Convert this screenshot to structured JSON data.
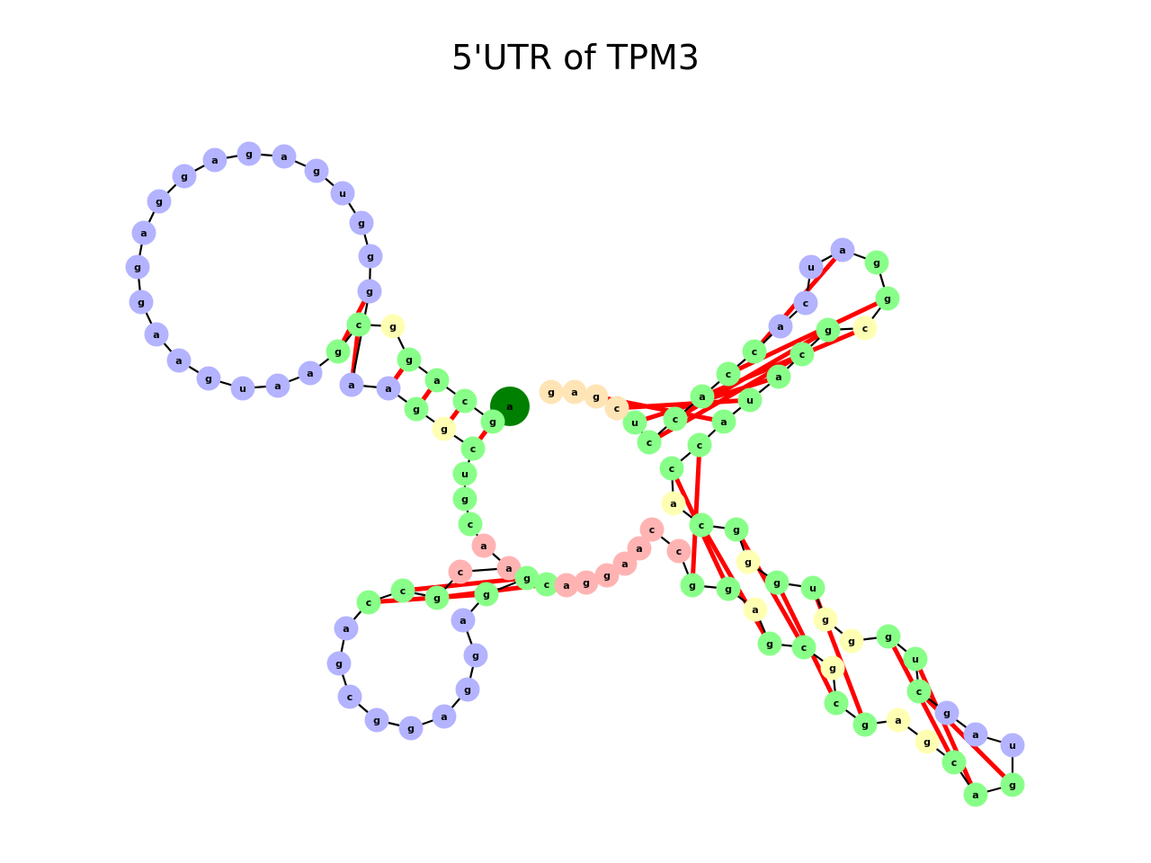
{
  "title": "5'UTR of TPM3",
  "colors": {
    "stem": "#88ff88",
    "hairpin_loop": "#b3b3ff",
    "interior_loop": "#ffffb3",
    "multiloop": "#ffb3b3",
    "unpaired_end": "#ffe4b5",
    "five_prime": "#008000",
    "three_prime": "#ff0000",
    "pair_line": "#ff0000",
    "backbone": "#000000"
  },
  "nucleotides": [
    {
      "base": "a",
      "type": "five_prime"
    },
    {
      "base": "g",
      "type": "stem"
    },
    {
      "base": "c",
      "type": "stem"
    },
    {
      "base": "a",
      "type": "stem"
    },
    {
      "base": "g",
      "type": "stem"
    },
    {
      "base": "g",
      "type": "interior_loop"
    },
    {
      "base": "c",
      "type": "stem"
    },
    {
      "base": "g",
      "type": "stem"
    },
    {
      "base": "a",
      "type": "hairpin_loop"
    },
    {
      "base": "a",
      "type": "hairpin_loop"
    },
    {
      "base": "u",
      "type": "hairpin_loop"
    },
    {
      "base": "g",
      "type": "hairpin_loop"
    },
    {
      "base": "a",
      "type": "hairpin_loop"
    },
    {
      "base": "a",
      "type": "hairpin_loop"
    },
    {
      "base": "g",
      "type": "hairpin_loop"
    },
    {
      "base": "g",
      "type": "hairpin_loop"
    },
    {
      "base": "a",
      "type": "hairpin_loop"
    },
    {
      "base": "g",
      "type": "hairpin_loop"
    },
    {
      "base": "g",
      "type": "hairpin_loop"
    },
    {
      "base": "a",
      "type": "hairpin_loop"
    },
    {
      "base": "g",
      "type": "hairpin_loop"
    },
    {
      "base": "a",
      "type": "hairpin_loop"
    },
    {
      "base": "g",
      "type": "hairpin_loop"
    },
    {
      "base": "u",
      "type": "hairpin_loop"
    },
    {
      "base": "g",
      "type": "hairpin_loop"
    },
    {
      "base": "g",
      "type": "hairpin_loop"
    },
    {
      "base": "g",
      "type": "hairpin_loop"
    },
    {
      "base": "a",
      "type": "hairpin_loop"
    },
    {
      "base": "a",
      "type": "hairpin_loop"
    },
    {
      "base": "g",
      "type": "stem"
    },
    {
      "base": "g",
      "type": "interior_loop"
    },
    {
      "base": "c",
      "type": "stem"
    },
    {
      "base": "u",
      "type": "stem"
    },
    {
      "base": "g",
      "type": "stem"
    },
    {
      "base": "c",
      "type": "stem"
    },
    {
      "base": "a",
      "type": "multiloop"
    },
    {
      "base": "a",
      "type": "multiloop"
    },
    {
      "base": "c",
      "type": "multiloop"
    },
    {
      "base": "g",
      "type": "stem"
    },
    {
      "base": "c",
      "type": "stem"
    },
    {
      "base": "c",
      "type": "stem"
    },
    {
      "base": "a",
      "type": "hairpin_loop"
    },
    {
      "base": "g",
      "type": "hairpin_loop"
    },
    {
      "base": "c",
      "type": "hairpin_loop"
    },
    {
      "base": "g",
      "type": "hairpin_loop"
    },
    {
      "base": "g",
      "type": "hairpin_loop"
    },
    {
      "base": "a",
      "type": "hairpin_loop"
    },
    {
      "base": "g",
      "type": "hairpin_loop"
    },
    {
      "base": "g",
      "type": "hairpin_loop"
    },
    {
      "base": "a",
      "type": "hairpin_loop"
    },
    {
      "base": "g",
      "type": "stem"
    },
    {
      "base": "g",
      "type": "stem"
    },
    {
      "base": "c",
      "type": "stem"
    },
    {
      "base": "a",
      "type": "multiloop"
    },
    {
      "base": "g",
      "type": "multiloop"
    },
    {
      "base": "g",
      "type": "multiloop"
    },
    {
      "base": "a",
      "type": "multiloop"
    },
    {
      "base": "a",
      "type": "multiloop"
    },
    {
      "base": "c",
      "type": "multiloop"
    },
    {
      "base": "c",
      "type": "multiloop"
    },
    {
      "base": "g",
      "type": "stem"
    },
    {
      "base": "g",
      "type": "stem"
    },
    {
      "base": "a",
      "type": "interior_loop"
    },
    {
      "base": "g",
      "type": "stem"
    },
    {
      "base": "c",
      "type": "stem"
    },
    {
      "base": "g",
      "type": "interior_loop"
    },
    {
      "base": "c",
      "type": "stem"
    },
    {
      "base": "g",
      "type": "stem"
    },
    {
      "base": "a",
      "type": "interior_loop"
    },
    {
      "base": "g",
      "type": "interior_loop"
    },
    {
      "base": "c",
      "type": "stem"
    },
    {
      "base": "a",
      "type": "stem"
    },
    {
      "base": "g",
      "type": "stem"
    },
    {
      "base": "u",
      "type": "hairpin_loop"
    },
    {
      "base": "a",
      "type": "hairpin_loop"
    },
    {
      "base": "g",
      "type": "hairpin_loop"
    },
    {
      "base": "c",
      "type": "stem"
    },
    {
      "base": "u",
      "type": "stem"
    },
    {
      "base": "g",
      "type": "stem"
    },
    {
      "base": "g",
      "type": "interior_loop"
    },
    {
      "base": "g",
      "type": "interior_loop"
    },
    {
      "base": "u",
      "type": "stem"
    },
    {
      "base": "g",
      "type": "stem"
    },
    {
      "base": "g",
      "type": "interior_loop"
    },
    {
      "base": "g",
      "type": "stem"
    },
    {
      "base": "c",
      "type": "stem"
    },
    {
      "base": "a",
      "type": "interior_loop"
    },
    {
      "base": "c",
      "type": "stem"
    },
    {
      "base": "c",
      "type": "stem"
    },
    {
      "base": "a",
      "type": "stem"
    },
    {
      "base": "u",
      "type": "stem"
    },
    {
      "base": "a",
      "type": "stem"
    },
    {
      "base": "c",
      "type": "stem"
    },
    {
      "base": "g",
      "type": "stem"
    },
    {
      "base": "c",
      "type": "interior_loop"
    },
    {
      "base": "g",
      "type": "stem"
    },
    {
      "base": "g",
      "type": "stem"
    },
    {
      "base": "a",
      "type": "hairpin_loop"
    },
    {
      "base": "u",
      "type": "hairpin_loop"
    },
    {
      "base": "c",
      "type": "hairpin_loop"
    },
    {
      "base": "a",
      "type": "hairpin_loop"
    },
    {
      "base": "c",
      "type": "stem"
    },
    {
      "base": "c",
      "type": "stem"
    },
    {
      "base": "a",
      "type": "stem"
    },
    {
      "base": "c",
      "type": "stem"
    },
    {
      "base": "c",
      "type": "stem"
    },
    {
      "base": "u",
      "type": "stem"
    },
    {
      "base": "c",
      "type": "unpaired_end"
    },
    {
      "base": "g",
      "type": "unpaired_end"
    },
    {
      "base": "a",
      "type": "unpaired_end"
    },
    {
      "base": "g",
      "type": "unpaired_end"
    },
    {
      "base": "g",
      "type": "three_prime"
    }
  ]
}
